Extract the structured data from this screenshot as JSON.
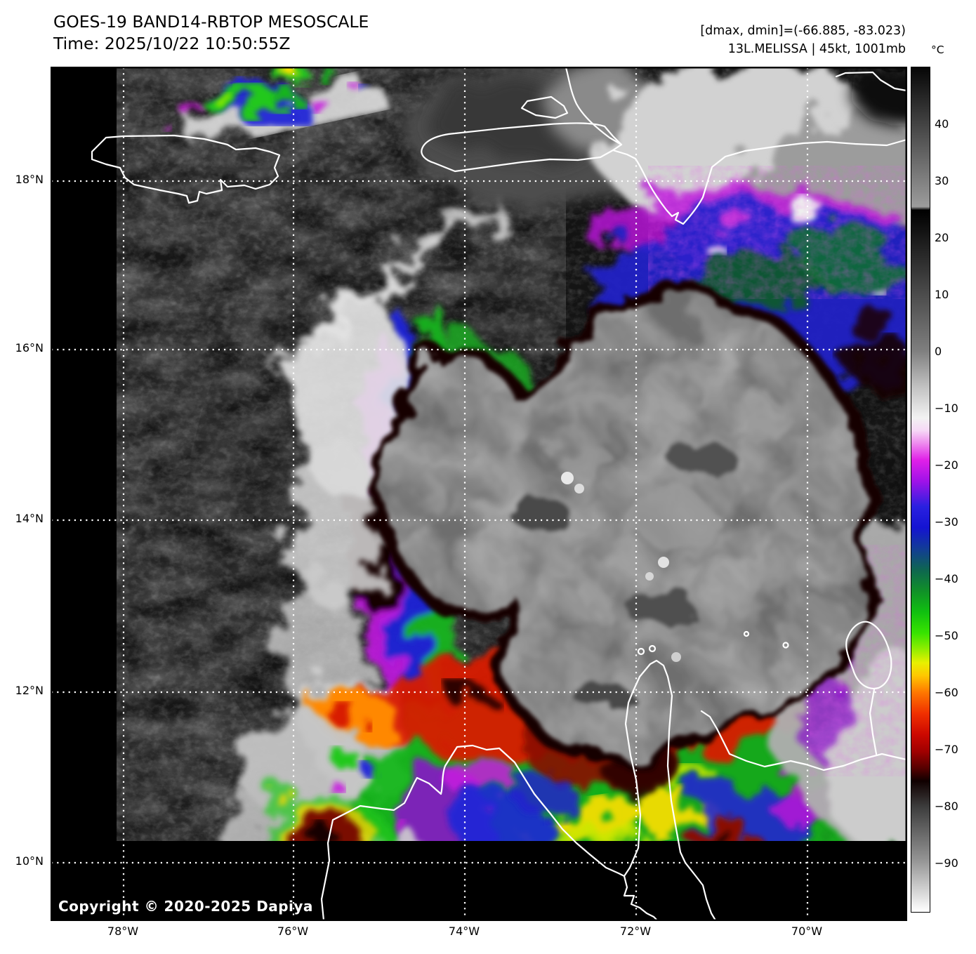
{
  "header": {
    "title": "GOES-19 BAND14-RBTOP MESOSCALE",
    "time_line": "Time: 2025/10/22 10:50:55Z",
    "dmax_dmin": "[dmax, dmin]=(-66.885, -83.023)",
    "storm_info": "13L.MELISSA | 45kt, 1001mb"
  },
  "colorbar": {
    "unit": "°C",
    "tick_labels": [
      "40",
      "30",
      "20",
      "10",
      "0",
      "−10",
      "−20",
      "−30",
      "−40",
      "−50",
      "−60",
      "−70",
      "−80",
      "−90"
    ],
    "gradient_stops": [
      [
        0,
        "#060606"
      ],
      [
        16.5,
        "#9c9c9c"
      ],
      [
        16.9,
        "#000000"
      ],
      [
        33.5,
        "#7e7e7e"
      ],
      [
        38,
        "#c4c4c4"
      ],
      [
        41.5,
        "#f2f2f2"
      ],
      [
        43,
        "#f6d8f6"
      ],
      [
        44.5,
        "#ee8cee"
      ],
      [
        46.5,
        "#e020e8"
      ],
      [
        49,
        "#a012e8"
      ],
      [
        52,
        "#2a20e0"
      ],
      [
        54.5,
        "#1414d2"
      ],
      [
        57,
        "#123c96"
      ],
      [
        59.5,
        "#0e6650"
      ],
      [
        62,
        "#109028"
      ],
      [
        64.5,
        "#10c010"
      ],
      [
        67,
        "#38e400"
      ],
      [
        69,
        "#96ee00"
      ],
      [
        70.5,
        "#e8f000"
      ],
      [
        72,
        "#ffc800"
      ],
      [
        74,
        "#ff7800"
      ],
      [
        76.5,
        "#f03000"
      ],
      [
        79,
        "#cc0800"
      ],
      [
        81,
        "#a00000"
      ],
      [
        83,
        "#550000"
      ],
      [
        84.5,
        "#100000"
      ],
      [
        87.5,
        "#3c3c3c"
      ],
      [
        94,
        "#969696"
      ],
      [
        100,
        "#ffffff"
      ]
    ]
  },
  "axes": {
    "lat_ticks": [
      "18°N",
      "16°N",
      "14°N",
      "12°N",
      "10°N"
    ],
    "lon_ticks": [
      "78°W",
      "76°W",
      "74°W",
      "72°W",
      "70°W"
    ]
  },
  "map": {
    "copyright": "Copyright © 2020-2025 Dapiya"
  },
  "chart_data": {
    "type": "heatmap",
    "title": "GOES-19 BAND14-RBTOP MESOSCALE",
    "time_utc": "2025/10/22 10:50:55Z",
    "satellite": "GOES-19",
    "band": "BAND14",
    "enhancement": "RBTOP",
    "sector": "MESOSCALE",
    "storm": {
      "id": "13L",
      "name": "MELISSA",
      "intensity_kt": 45,
      "pressure_mb": 1001
    },
    "cloud_top_temp_c": {
      "dmax": -66.885,
      "dmin": -83.023
    },
    "colorbar_unit": "°C",
    "colorbar_ticks_c": [
      40,
      30,
      20,
      10,
      0,
      -10,
      -20,
      -30,
      -40,
      -50,
      -60,
      -70,
      -80,
      -90
    ],
    "colorbar_range_c": [
      50,
      -98
    ],
    "gridline_lats_degN": [
      18,
      16,
      14,
      12,
      10
    ],
    "gridline_lons_degW": [
      78,
      76,
      74,
      72,
      70
    ],
    "lat_range_degN": [
      9.3,
      19.3
    ],
    "lon_range_degW": [
      78.9,
      68.8
    ],
    "features": [
      "Tropical storm Melissa centered near 14N 72W with cold gray overshooting CDO (below -75C) ringed by dark-red/red/orange/yellow/green/blue/magenta cloud-top bands",
      "Warm dark (grayscale) clear slot west of storm with scattered low clouds",
      "Cold convective band with magenta/blue/green tops over Hispaniola to the north",
      "Small cold convective cells north of Jamaica (top-left)",
      "Green/yellow convective field along Colombia/Venezuela coast to the south",
      "Gray mid-cloud mass over Venezuela (bottom-right)",
      "White coastlines: Jamaica, Hispaniola, Guajira Peninsula, Gulf of Venezuela",
      "No-data black margins on west and south edges of imagery"
    ]
  }
}
